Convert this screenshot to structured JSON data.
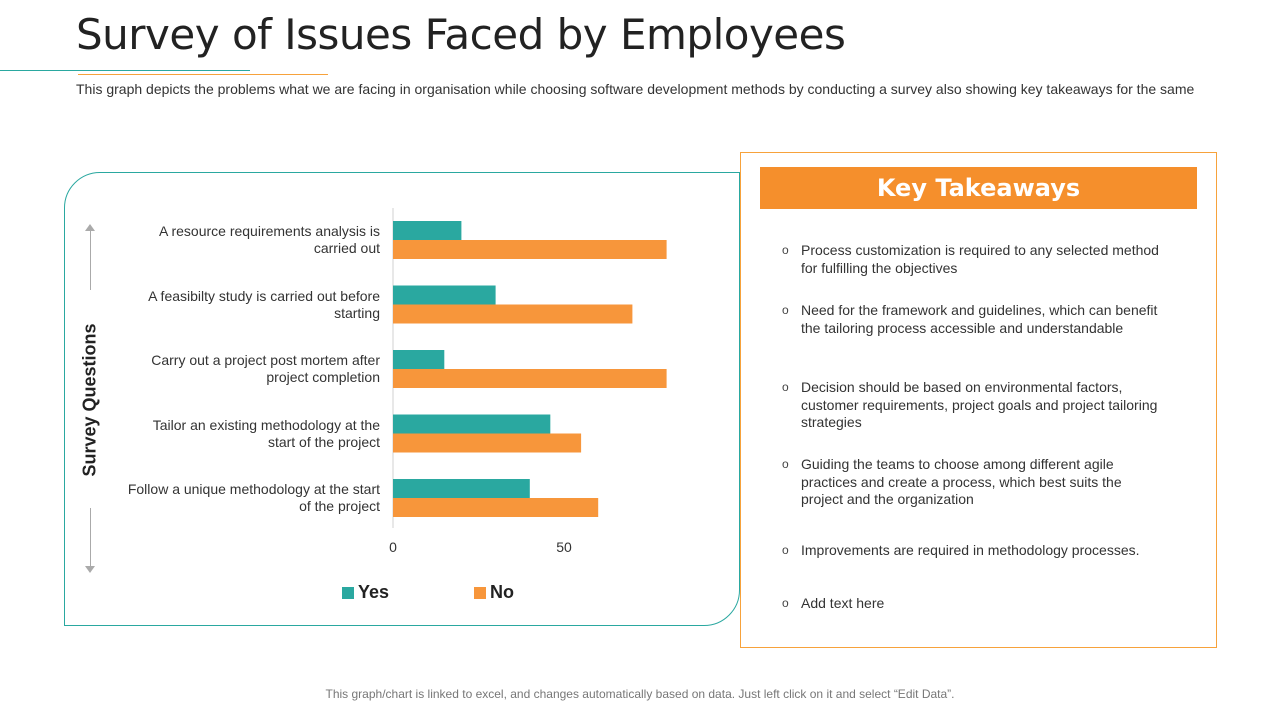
{
  "title": "Survey of Issues Faced by Employees",
  "subtitle": "This graph depicts the problems what we are facing in organisation while choosing software development methods by conducting a survey  also showing key takeaways for the same",
  "chart_data": {
    "type": "bar",
    "orientation": "horizontal",
    "ylabel": "Survey Questions",
    "xlabel": "",
    "categories": [
      "A resource requirements analysis is carried out",
      "A feasibilty study is carried out before starting",
      "Carry  out a project post mortem after project completion",
      "Tailor an existing methodology at the start of the project",
      "Follow a unique methodology at the start of the project"
    ],
    "category_lines": [
      [
        "A resource requirements analysis is",
        "carried out"
      ],
      [
        "A feasibilty study is carried out before",
        "starting"
      ],
      [
        "Carry  out a project post mortem after",
        "project completion"
      ],
      [
        "Tailor an existing methodology at the",
        "start of the project"
      ],
      [
        "Follow a unique methodology at the start",
        "of the project"
      ]
    ],
    "series": [
      {
        "name": "Yes",
        "color": "#2aa8a0",
        "values": [
          20,
          30,
          15,
          46,
          40
        ]
      },
      {
        "name": "No",
        "color": "#f7963b",
        "values": [
          80,
          70,
          80,
          55,
          60
        ]
      }
    ],
    "xlim": [
      0,
      80
    ],
    "xticks": [
      "0",
      "50"
    ],
    "legend": "bottom"
  },
  "takeaways": {
    "header": "Key Takeaways",
    "bullet": "o",
    "items": [
      "Process customization is required to any selected method for fulfilling the objectives",
      "Need for the framework and guidelines,  which can benefit the tailoring process accessible and understandable",
      "Decision should be based on environmental factors, customer requirements, project goals and project tailoring strategies",
      "Guiding the teams to choose among different agile practices and create a process, which best suits the project and the organization",
      "Improvements are required in methodology processes.",
      "Add text here"
    ]
  },
  "footer": "This graph/chart is linked to excel, and changes automatically based on data. Just left click on it and select “Edit Data”."
}
